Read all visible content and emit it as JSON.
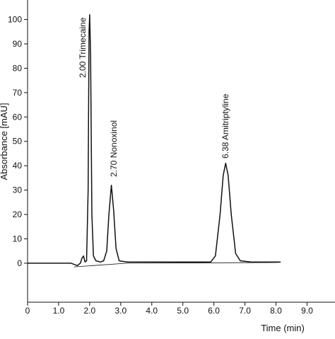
{
  "chart_data": {
    "type": "line",
    "x_label": "Time (min)",
    "y_label": "Absorbance [mAU]",
    "xlim": [
      0,
      9.9
    ],
    "ylim": [
      -16,
      108
    ],
    "xticks": [
      0,
      {
        "value": 1,
        "label": "1.0"
      },
      {
        "value": 2,
        "label": "2.0"
      },
      {
        "value": 3,
        "label": "3.0"
      },
      {
        "value": 4,
        "label": "4.0"
      },
      {
        "value": 5,
        "label": "5.0"
      },
      {
        "value": 6,
        "label": "6.0"
      },
      {
        "value": 7,
        "label": "7.0"
      },
      {
        "value": 8,
        "label": "8.0"
      },
      {
        "value": 9,
        "label": "9.0"
      }
    ],
    "yticks": [
      0,
      10,
      20,
      30,
      40,
      50,
      60,
      70,
      80,
      90,
      100
    ],
    "series": [
      {
        "color": "#111111",
        "x": [
          0,
          1.4,
          1.5,
          1.6,
          1.7,
          1.75,
          1.8,
          1.85,
          1.9,
          1.95,
          1.98,
          2.0,
          2.03,
          2.07,
          2.12,
          2.2,
          2.35,
          2.45,
          2.55,
          2.62,
          2.7,
          2.77,
          2.85,
          2.95,
          3.2,
          5.9,
          6.05,
          6.2,
          6.3,
          6.38,
          6.46,
          6.56,
          6.7,
          6.85,
          7.2,
          8.15
        ],
        "values": [
          0,
          0,
          -0.5,
          -1,
          0,
          2,
          3,
          0.5,
          1,
          30,
          95,
          102,
          85,
          20,
          3,
          1,
          0.5,
          1,
          5,
          20,
          32,
          22,
          6,
          1,
          0.5,
          0.5,
          3,
          20,
          36,
          41,
          36,
          20,
          4,
          1,
          0.5,
          0.5
        ]
      },
      {
        "color": "#111111",
        "x": [
          1.5,
          3.2,
          8.1
        ],
        "values": [
          -1.5,
          0,
          0.3
        ]
      }
    ],
    "annotations": [
      "2.00 Trimecaine",
      "2.70 Nonoxinol",
      "6.38 Amitriptyline"
    ]
  }
}
